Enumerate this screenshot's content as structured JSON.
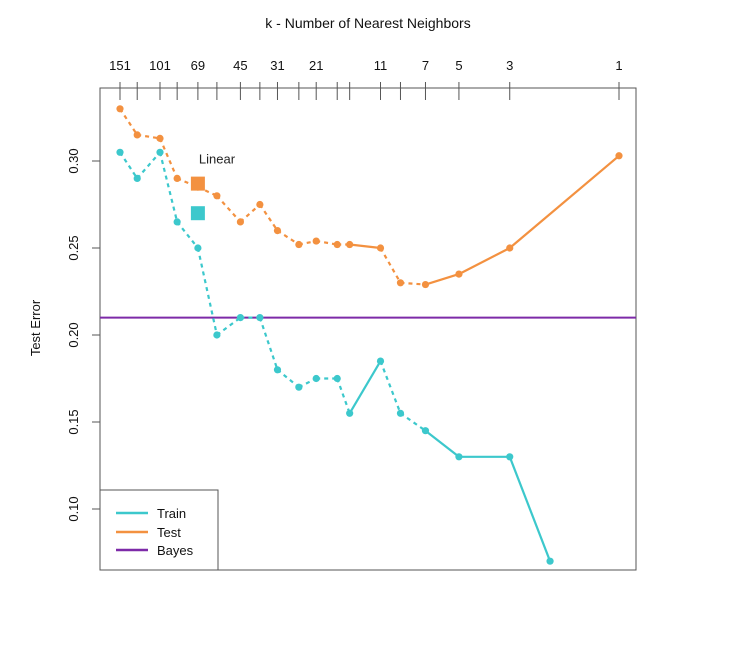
{
  "chart_data": {
    "type": "line",
    "title": "k -  Number of Nearest Neighbors",
    "ylabel": "Test Error",
    "ylim": [
      0.07,
      0.35
    ],
    "y_ticks": [
      {
        "value": 0.1,
        "label": "0.10"
      },
      {
        "value": 0.15,
        "label": "0.15"
      },
      {
        "value": 0.2,
        "label": "0.20"
      },
      {
        "value": 0.25,
        "label": "0.25"
      },
      {
        "value": 0.3,
        "label": "0.30"
      }
    ],
    "x_scale": "1/k (log)",
    "k_top_ticks": [
      151,
      127,
      101,
      85,
      69,
      57,
      45,
      37,
      31,
      25,
      21,
      17,
      15,
      11,
      9,
      7,
      5,
      3,
      1
    ],
    "k_top_labels": [
      "151",
      "101",
      "69",
      "45",
      "31",
      "21",
      "11",
      "7",
      "5",
      "3",
      "1"
    ],
    "series": [
      {
        "name": "Train",
        "color": "#3cc8cc",
        "k": [
          151,
          127,
          101,
          85,
          69,
          57,
          45,
          37,
          31,
          25,
          21,
          17,
          15,
          11,
          9,
          7,
          5,
          3,
          2
        ],
        "values": [
          0.305,
          0.29,
          0.305,
          0.265,
          0.25,
          0.2,
          0.21,
          0.21,
          0.18,
          0.17,
          0.175,
          0.175,
          0.155,
          0.185,
          0.155,
          0.145,
          0.13,
          0.13,
          0.07
        ]
      },
      {
        "name": "Test",
        "color": "#f39140",
        "k": [
          151,
          127,
          101,
          85,
          69,
          57,
          45,
          37,
          31,
          25,
          21,
          17,
          15,
          11,
          9,
          7,
          5,
          3,
          1
        ],
        "values": [
          0.33,
          0.315,
          0.313,
          0.29,
          0.285,
          0.28,
          0.265,
          0.275,
          0.26,
          0.252,
          0.254,
          0.252,
          0.252,
          0.25,
          0.23,
          0.229,
          0.235,
          0.25,
          0.303
        ]
      }
    ],
    "bayes": {
      "name": "Bayes",
      "value": 0.21,
      "color": "#7d2aa8"
    },
    "linear": {
      "label": "Linear",
      "k": 69,
      "test": 0.287,
      "train": 0.27
    },
    "legend": {
      "position": "bottom-left",
      "entries": [
        "Train",
        "Test",
        "Bayes"
      ]
    }
  }
}
